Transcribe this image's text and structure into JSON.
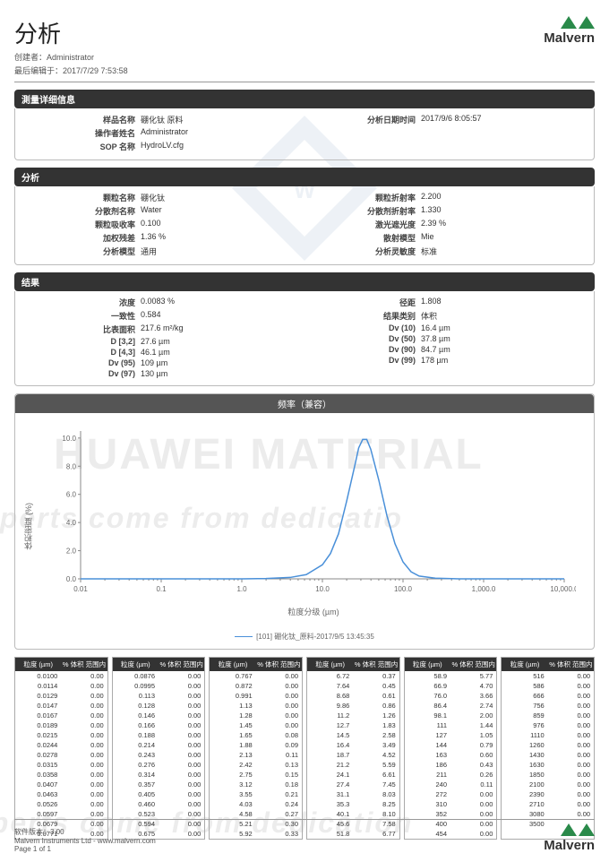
{
  "header": {
    "title": "分析",
    "creator_label": "创建者：",
    "creator": "Administrator",
    "edited_label": "最后编辑于：",
    "edited": "2017/7/29 7:53:58",
    "brand": "Malvern"
  },
  "sections": {
    "meas": {
      "title": "測量详细信息",
      "left": [
        {
          "l": "样品名称",
          "v": "硼化钛   原料"
        },
        {
          "l": "操作者姓名",
          "v": "Administrator"
        },
        {
          "l": "SOP 名称",
          "v": "HydroLV.cfg"
        }
      ],
      "right": [
        {
          "l": "分析日期时间",
          "v": "2017/9/6 8:05:57"
        }
      ]
    },
    "analysis": {
      "title": "分析",
      "left": [
        {
          "l": "颗粒名称",
          "v": "硼化钛"
        },
        {
          "l": "分散剂名称",
          "v": "Water"
        },
        {
          "l": "颗粒吸收率",
          "v": "0.100"
        },
        {
          "l": "加权残差",
          "v": "1.36 %"
        },
        {
          "l": "分析模型",
          "v": "通用"
        }
      ],
      "right": [
        {
          "l": "颗粒折射率",
          "v": "2.200"
        },
        {
          "l": "分散剂折射率",
          "v": "1.330"
        },
        {
          "l": "激光遮光度",
          "v": "2.39 %"
        },
        {
          "l": "散射模型",
          "v": "Mie"
        },
        {
          "l": "分析灵敏度",
          "v": "标准"
        }
      ]
    },
    "result": {
      "title": "结果",
      "left": [
        {
          "l": "浓度",
          "v": "0.0083 %"
        },
        {
          "l": "一致性",
          "v": "0.584"
        },
        {
          "l": "比表面积",
          "v": "217.6 m²/kg"
        },
        {
          "l": "D [3,2]",
          "v": "27.6 µm"
        },
        {
          "l": "D [4,3]",
          "v": "46.1 µm"
        },
        {
          "l": "Dv (95)",
          "v": "109 µm"
        },
        {
          "l": "Dv (97)",
          "v": "130 µm"
        }
      ],
      "right": [
        {
          "l": "径距",
          "v": "1.808"
        },
        {
          "l": "结果类别",
          "v": "体积"
        },
        {
          "l": "Dv (10)",
          "v": "16.4 µm"
        },
        {
          "l": "Dv (50)",
          "v": "37.8 µm"
        },
        {
          "l": "Dv (90)",
          "v": "84.7 µm"
        },
        {
          "l": "Dv (99)",
          "v": "178 µm"
        }
      ]
    }
  },
  "chart": {
    "title": "频率（兼容）",
    "ylabel": "体积密度 (%)",
    "xlabel": "粒度分级 (µm)",
    "legend": "[101] 硼化钛_原料-2017/9/5 13:45:35",
    "line_color": "#4a90d9",
    "axis_color": "#888",
    "xticks": [
      "0.01",
      "0.1",
      "1.0",
      "10.0",
      "100.0",
      "1,000.0",
      "10,000.0"
    ],
    "yticks": [
      "0.0",
      "2.0",
      "4.0",
      "6.0",
      "8.0",
      "10.0"
    ],
    "ylim": [
      0,
      10.5
    ],
    "curve_logx_y": [
      [
        -2,
        0
      ],
      [
        0,
        0
      ],
      [
        0.3,
        0.02
      ],
      [
        0.6,
        0.1
      ],
      [
        0.8,
        0.3
      ],
      [
        1.0,
        1.0
      ],
      [
        1.1,
        1.8
      ],
      [
        1.2,
        3.2
      ],
      [
        1.3,
        5.5
      ],
      [
        1.4,
        8.0
      ],
      [
        1.45,
        9.3
      ],
      [
        1.5,
        9.9
      ],
      [
        1.55,
        9.9
      ],
      [
        1.6,
        9.2
      ],
      [
        1.7,
        7.0
      ],
      [
        1.8,
        4.5
      ],
      [
        1.9,
        2.5
      ],
      [
        2.0,
        1.2
      ],
      [
        2.1,
        0.5
      ],
      [
        2.2,
        0.2
      ],
      [
        2.4,
        0.05
      ],
      [
        2.7,
        0
      ],
      [
        4,
        0
      ]
    ]
  },
  "table": {
    "headers": [
      "粒度 (µm)",
      "% 体积 范围内"
    ],
    "columns": [
      [
        [
          "0.0100",
          "0.00"
        ],
        [
          "0.0114",
          "0.00"
        ],
        [
          "0.0129",
          "0.00"
        ],
        [
          "0.0147",
          "0.00"
        ],
        [
          "0.0167",
          "0.00"
        ],
        [
          "0.0189",
          "0.00"
        ],
        [
          "0.0215",
          "0.00"
        ],
        [
          "0.0244",
          "0.00"
        ],
        [
          "0.0278",
          "0.00"
        ],
        [
          "0.0315",
          "0.00"
        ],
        [
          "0.0358",
          "0.00"
        ],
        [
          "0.0407",
          "0.00"
        ],
        [
          "0.0463",
          "0.00"
        ],
        [
          "0.0526",
          "0.00"
        ],
        [
          "0.0597",
          "0.00"
        ],
        [
          "0.0679",
          "0.00"
        ],
        [
          "0.0771",
          "0.00"
        ]
      ],
      [
        [
          "0.0876",
          "0.00"
        ],
        [
          "0.0995",
          "0.00"
        ],
        [
          "0.113",
          "0.00"
        ],
        [
          "0.128",
          "0.00"
        ],
        [
          "0.146",
          "0.00"
        ],
        [
          "0.166",
          "0.00"
        ],
        [
          "0.188",
          "0.00"
        ],
        [
          "0.214",
          "0.00"
        ],
        [
          "0.243",
          "0.00"
        ],
        [
          "0.276",
          "0.00"
        ],
        [
          "0.314",
          "0.00"
        ],
        [
          "0.357",
          "0.00"
        ],
        [
          "0.405",
          "0.00"
        ],
        [
          "0.460",
          "0.00"
        ],
        [
          "0.523",
          "0.00"
        ],
        [
          "0.594",
          "0.00"
        ],
        [
          "0.675",
          "0.00"
        ]
      ],
      [
        [
          "0.767",
          "0.00"
        ],
        [
          "0.872",
          "0.00"
        ],
        [
          "0.991",
          "0.00"
        ],
        [
          "1.13",
          "0.00"
        ],
        [
          "1.28",
          "0.00"
        ],
        [
          "1.45",
          "0.00"
        ],
        [
          "1.65",
          "0.08"
        ],
        [
          "1.88",
          "0.09"
        ],
        [
          "2.13",
          "0.11"
        ],
        [
          "2.42",
          "0.13"
        ],
        [
          "2.75",
          "0.15"
        ],
        [
          "3.12",
          "0.18"
        ],
        [
          "3.55",
          "0.21"
        ],
        [
          "4.03",
          "0.24"
        ],
        [
          "4.58",
          "0.27"
        ],
        [
          "5.21",
          "0.30"
        ],
        [
          "5.92",
          "0.33"
        ]
      ],
      [
        [
          "6.72",
          "0.37"
        ],
        [
          "7.64",
          "0.45"
        ],
        [
          "8.68",
          "0.61"
        ],
        [
          "9.86",
          "0.86"
        ],
        [
          "11.2",
          "1.26"
        ],
        [
          "12.7",
          "1.83"
        ],
        [
          "14.5",
          "2.58"
        ],
        [
          "16.4",
          "3.49"
        ],
        [
          "18.7",
          "4.52"
        ],
        [
          "21.2",
          "5.59"
        ],
        [
          "24.1",
          "6.61"
        ],
        [
          "27.4",
          "7.45"
        ],
        [
          "31.1",
          "8.03"
        ],
        [
          "35.3",
          "8.25"
        ],
        [
          "40.1",
          "8.10"
        ],
        [
          "45.6",
          "7.58"
        ],
        [
          "51.8",
          "6.77"
        ]
      ],
      [
        [
          "58.9",
          "5.77"
        ],
        [
          "66.9",
          "4.70"
        ],
        [
          "76.0",
          "3.66"
        ],
        [
          "86.4",
          "2.74"
        ],
        [
          "98.1",
          "2.00"
        ],
        [
          "111",
          "1.44"
        ],
        [
          "127",
          "1.05"
        ],
        [
          "144",
          "0.79"
        ],
        [
          "163",
          "0.60"
        ],
        [
          "186",
          "0.43"
        ],
        [
          "211",
          "0.26"
        ],
        [
          "240",
          "0.11"
        ],
        [
          "272",
          "0.00"
        ],
        [
          "310",
          "0.00"
        ],
        [
          "352",
          "0.00"
        ],
        [
          "400",
          "0.00"
        ],
        [
          "454",
          "0.00"
        ]
      ],
      [
        [
          "516",
          "0.00"
        ],
        [
          "586",
          "0.00"
        ],
        [
          "666",
          "0.00"
        ],
        [
          "756",
          "0.00"
        ],
        [
          "859",
          "0.00"
        ],
        [
          "976",
          "0.00"
        ],
        [
          "1110",
          "0.00"
        ],
        [
          "1260",
          "0.00"
        ],
        [
          "1430",
          "0.00"
        ],
        [
          "1630",
          "0.00"
        ],
        [
          "1850",
          "0.00"
        ],
        [
          "2100",
          "0.00"
        ],
        [
          "2390",
          "0.00"
        ],
        [
          "2710",
          "0.00"
        ],
        [
          "3080",
          "0.00"
        ],
        [
          "3500",
          ""
        ]
      ]
    ]
  },
  "footer": {
    "version_label": "软件版本：",
    "version": "3.00",
    "company": "Malvern Instruments Ltd - www.malvern.com",
    "page": "Page 1 of 1"
  }
}
